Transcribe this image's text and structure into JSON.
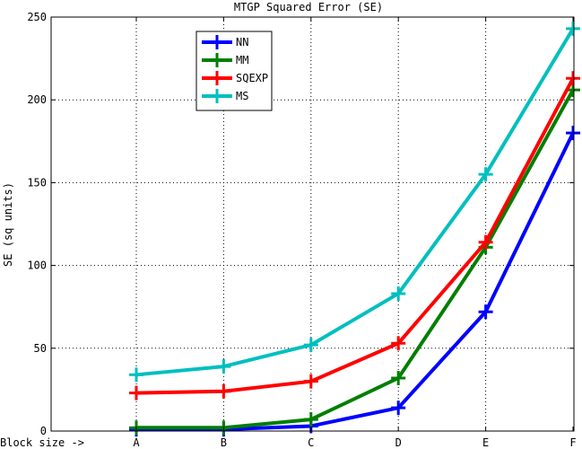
{
  "chart_data": {
    "type": "line",
    "title": "MTGP Squared Error (SE)",
    "xlabel": "Block size ->",
    "ylabel": "SE (sq units)",
    "categories": [
      "A",
      "B",
      "C",
      "D",
      "E",
      "F"
    ],
    "ylim": [
      0,
      250
    ],
    "yticks": [
      0,
      50,
      100,
      150,
      200,
      250
    ],
    "grid": true,
    "legend_position": "top-center",
    "series": [
      {
        "name": "NN",
        "color": "#0000ff",
        "values": [
          1,
          1,
          3,
          14,
          72,
          180
        ]
      },
      {
        "name": "MM",
        "color": "#007f00",
        "values": [
          2,
          2,
          7,
          32,
          111,
          206
        ]
      },
      {
        "name": "SQEXP",
        "color": "#ff0000",
        "values": [
          23,
          24,
          30,
          53,
          114,
          213
        ]
      },
      {
        "name": "MS",
        "color": "#00bfbf",
        "values": [
          34,
          39,
          52,
          83,
          155,
          243
        ]
      }
    ]
  }
}
